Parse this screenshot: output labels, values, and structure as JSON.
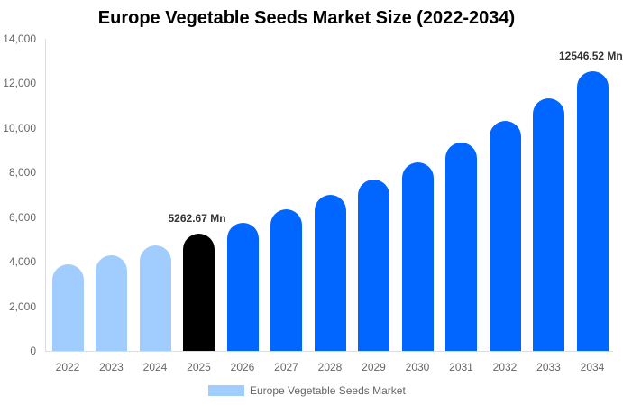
{
  "chart_data": {
    "type": "bar",
    "title": "Europe Vegetable Seeds Market Size (2022-2034)",
    "xlabel": "",
    "ylabel": "",
    "ylim": [
      0,
      14000
    ],
    "yticks": [
      "0",
      "2,000",
      "4,000",
      "6,000",
      "8,000",
      "10,000",
      "12,000",
      "14,000"
    ],
    "grid": false,
    "legend_position": "bottom",
    "categories": [
      "2022",
      "2023",
      "2024",
      "2025",
      "2026",
      "2027",
      "2028",
      "2029",
      "2030",
      "2031",
      "2032",
      "2033",
      "2034"
    ],
    "series": [
      {
        "name": "Europe Vegetable Seeds Market",
        "values": [
          3885,
          4290,
          4735,
          5262.67,
          5747,
          6354,
          7000,
          7690,
          8458,
          9349,
          10320,
          11332,
          12546.52
        ]
      }
    ],
    "bar_colors": [
      "#a0cdfd",
      "#a0cdfd",
      "#a0cdfd",
      "#000000",
      "#0066ff",
      "#0066ff",
      "#0066ff",
      "#0066ff",
      "#0066ff",
      "#0066ff",
      "#0066ff",
      "#0066ff",
      "#0066ff"
    ],
    "annotations": [
      {
        "category": "2025",
        "text": "5262.67 Mn"
      },
      {
        "category": "2034",
        "text": "12546.52 Mn"
      }
    ]
  },
  "title": "Europe Vegetable Seeds Market Size (2022-2034)",
  "legend": {
    "label": "Europe Vegetable Seeds Market",
    "color": "#a0cdfd"
  },
  "annotations": {
    "a2025": "5262.67 Mn",
    "a2034": "12546.52 Mn"
  }
}
